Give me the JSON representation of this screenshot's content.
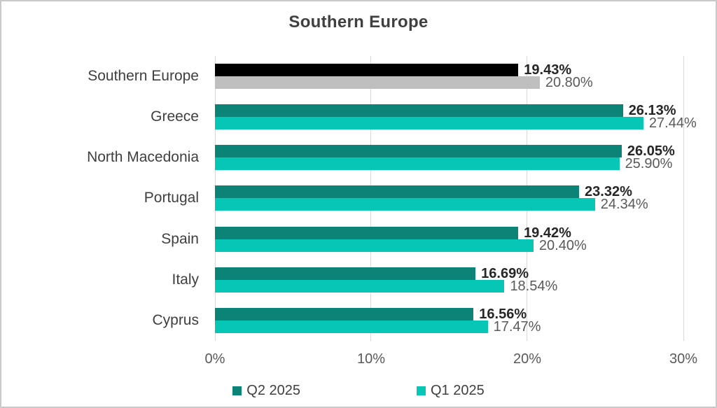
{
  "title": "Southern Europe",
  "colors": {
    "q2_series": "#0B8376",
    "q1_series": "#06C7B5",
    "q2_highlight": "#000000",
    "q1_highlight": "#BFBFBF",
    "gridline": "#D9D9D9",
    "title_text": "#404040",
    "category_text": "#3F3F3F",
    "q2_label_text": "#262626",
    "q1_label_text": "#595959",
    "axis_text": "#595959"
  },
  "chart_data": {
    "type": "bar",
    "orientation": "horizontal",
    "title": "Southern Europe",
    "categories": [
      "Southern Europe",
      "Greece",
      "North Macedonia",
      "Portugal",
      "Spain",
      "Italy",
      "Cyprus"
    ],
    "series": [
      {
        "name": "Q2 2025",
        "color": "#0B8376",
        "highlight_color": "#000000",
        "values": [
          19.43,
          26.13,
          26.05,
          23.32,
          19.42,
          16.69,
          16.56
        ],
        "labels": [
          "19.43%",
          "26.13%",
          "26.05%",
          "23.32%",
          "19.42%",
          "16.69%",
          "16.56%"
        ]
      },
      {
        "name": "Q1 2025",
        "color": "#06C7B5",
        "highlight_color": "#BFBFBF",
        "values": [
          20.8,
          27.44,
          25.9,
          24.34,
          20.4,
          18.54,
          17.47
        ],
        "labels": [
          "20.80%",
          "27.44%",
          "25.90%",
          "24.34%",
          "20.40%",
          "18.54%",
          "17.47%"
        ]
      }
    ],
    "highlight_index": 0,
    "x_axis": {
      "min": 0,
      "max": 30,
      "ticks": [
        0,
        10,
        20,
        30
      ],
      "tick_labels": [
        "0%",
        "10%",
        "20%",
        "30%"
      ]
    },
    "grid": "vertical-only",
    "legend_position": "bottom",
    "xlabel": "",
    "ylabel": ""
  },
  "legend": {
    "items": [
      {
        "label": "Q2 2025",
        "color": "#0B8376"
      },
      {
        "label": "Q1 2025",
        "color": "#06C7B5"
      }
    ]
  }
}
